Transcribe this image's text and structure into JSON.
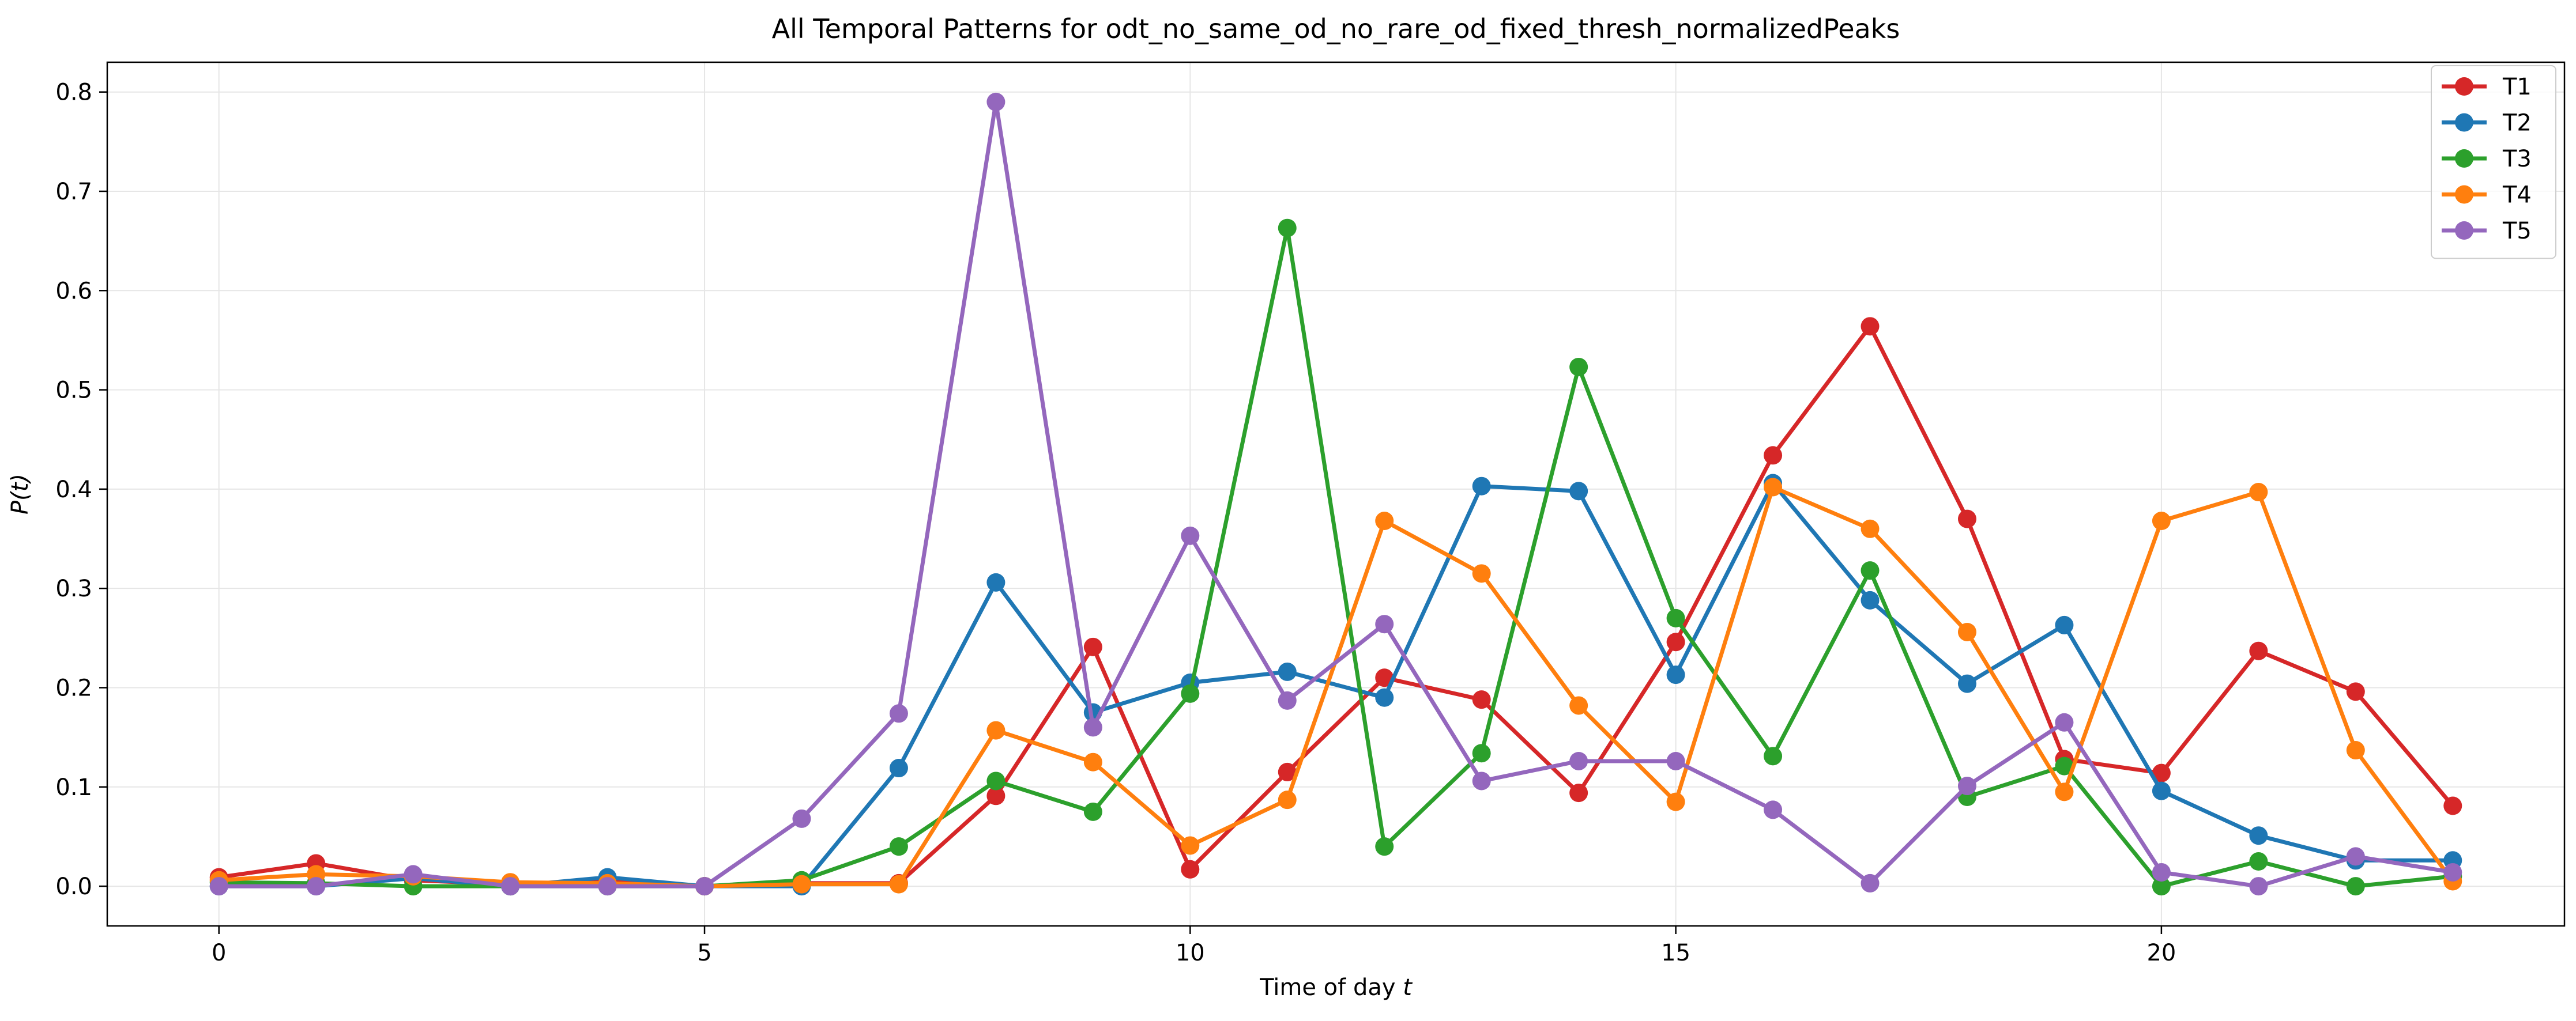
{
  "chart_data": {
    "type": "line",
    "title": "All Temporal Patterns for odt_no_same_od_no_rare_od_fixed_thresh_normalizedPeaks",
    "xlabel": "Time of day t",
    "ylabel": "P(t)",
    "xlim": [
      -1.15,
      24.15
    ],
    "ylim": [
      -0.04,
      0.83
    ],
    "x_ticks": [
      0,
      5,
      10,
      15,
      20
    ],
    "y_ticks": [
      0.0,
      0.1,
      0.2,
      0.3,
      0.4,
      0.5,
      0.6,
      0.7,
      0.8
    ],
    "x_tick_labels": [
      "0",
      "5",
      "10",
      "15",
      "20"
    ],
    "y_tick_labels": [
      "0.0",
      "0.1",
      "0.2",
      "0.3",
      "0.4",
      "0.5",
      "0.6",
      "0.7",
      "0.8"
    ],
    "grid": true,
    "legend_position": "top-right",
    "x": [
      0,
      1,
      2,
      3,
      4,
      5,
      6,
      7,
      8,
      9,
      10,
      11,
      12,
      13,
      14,
      15,
      16,
      17,
      18,
      19,
      20,
      21,
      22,
      23
    ],
    "series": [
      {
        "name": "T1",
        "color": "#d62728",
        "values": [
          0.009,
          0.023,
          0.006,
          0.002,
          0.005,
          0.0,
          0.003,
          0.003,
          0.091,
          0.241,
          0.017,
          0.115,
          0.21,
          0.188,
          0.094,
          0.246,
          0.434,
          0.564,
          0.37,
          0.128,
          0.114,
          0.237,
          0.196,
          0.081
        ]
      },
      {
        "name": "T2",
        "color": "#1f77b4",
        "values": [
          0.0,
          0.0,
          0.008,
          0.0,
          0.009,
          0.0,
          0.0,
          0.119,
          0.306,
          0.175,
          0.205,
          0.216,
          0.19,
          0.403,
          0.398,
          0.213,
          0.406,
          0.288,
          0.204,
          0.263,
          0.096,
          0.051,
          0.026,
          0.026
        ]
      },
      {
        "name": "T3",
        "color": "#2ca02c",
        "values": [
          0.004,
          0.003,
          0.0,
          0.0,
          0.0,
          0.0,
          0.006,
          0.04,
          0.106,
          0.075,
          0.194,
          0.663,
          0.04,
          0.134,
          0.523,
          0.27,
          0.131,
          0.318,
          0.09,
          0.121,
          0.0,
          0.025,
          0.0,
          0.01
        ]
      },
      {
        "name": "T4",
        "color": "#ff7f0e",
        "values": [
          0.006,
          0.012,
          0.01,
          0.004,
          0.003,
          0.0,
          0.002,
          0.002,
          0.157,
          0.125,
          0.041,
          0.087,
          0.368,
          0.315,
          0.182,
          0.085,
          0.402,
          0.36,
          0.256,
          0.095,
          0.368,
          0.397,
          0.137,
          0.005
        ]
      },
      {
        "name": "T5",
        "color": "#9467bd",
        "values": [
          0.0,
          0.0,
          0.012,
          0.0,
          0.0,
          0.0,
          0.068,
          0.174,
          0.79,
          0.16,
          0.353,
          0.187,
          0.264,
          0.106,
          0.126,
          0.126,
          0.077,
          0.003,
          0.101,
          0.165,
          0.014,
          0.0,
          0.03,
          0.014
        ]
      }
    ]
  }
}
